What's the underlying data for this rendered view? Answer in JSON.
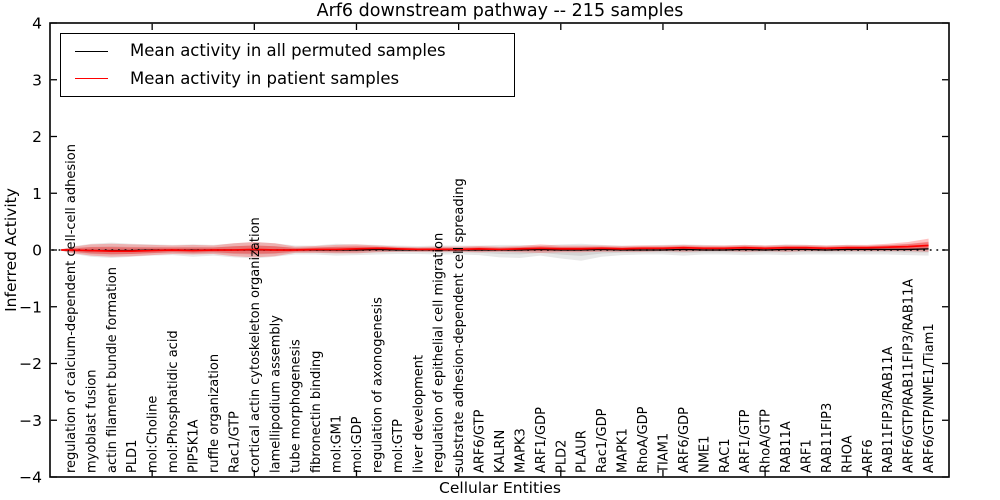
{
  "title": "Arf6 downstream pathway -- 215 samples",
  "legend": {
    "items": [
      {
        "label": "Mean activity in all permuted samples",
        "color": "#000000"
      },
      {
        "label": "Mean activity in patient samples",
        "color": "#ff0000"
      }
    ]
  },
  "axes": {
    "ylabel": "Inferred Activity",
    "xlabel": "Cellular Entities",
    "ylim": [
      -4,
      4
    ],
    "xlim": [
      0,
      44
    ],
    "ytick_values": [
      4,
      3,
      2,
      1,
      0,
      -1,
      -2,
      -3,
      -4
    ],
    "ytick_labels": [
      "4",
      "3",
      "2",
      "1",
      "0",
      "−1",
      "−2",
      "−3",
      "−4"
    ],
    "xtick_values": [
      5,
      10,
      15,
      20,
      25,
      30,
      35,
      40
    ],
    "grid": false,
    "zero_line": "dotted"
  },
  "chart_data": {
    "type": "line",
    "title": "Arf6 downstream pathway -- 215 samples",
    "xlabel": "Cellular Entities",
    "ylabel": "Inferred Activity",
    "ylim": [
      -4,
      4
    ],
    "legend_position": "upper left",
    "categories": [
      "regulation of calcium-dependent cell-cell adhesion",
      "myoblast fusion",
      "actin filament bundle formation",
      "PLD1",
      "mol:Choline",
      "mol:Phosphatidic acid",
      "PIP5K1A",
      "ruffle organization",
      "Rac1/GTP",
      "cortical actin cytoskeleton organization",
      "lamellipodium assembly",
      "tube morphogenesis",
      "fibronectin binding",
      "mol:GM1",
      "mol:GDP",
      "regulation of axonogenesis",
      "mol:GTP",
      "liver development",
      "regulation of epithelial cell migration",
      "substrate adhesion-dependent cell spreading",
      "ARF6/GTP",
      "KALRN",
      "MAPK3",
      "ARF1/GDP",
      "PLD2",
      "PLAUR",
      "Rac1/GDP",
      "MAPK1",
      "RhoA/GDP",
      "TIAM1",
      "ARF6/GDP",
      "NME1",
      "RAC1",
      "ARF1/GTP",
      "RhoA/GTP",
      "RAB11A",
      "ARF1",
      "RAB11FIP3",
      "RHOA",
      "ARF6",
      "RAB11FIP3/RAB11A",
      "ARF6/GTP/RAB11FIP3/RAB11A",
      "ARF6/GTP/NME1/Tiam1"
    ],
    "series": [
      {
        "name": "Mean activity in all permuted samples",
        "color": "#000000",
        "values": [
          0,
          -0.01,
          -0.01,
          -0.01,
          0,
          0,
          0,
          0,
          0,
          0,
          0,
          0,
          0,
          0,
          0,
          0.01,
          0,
          0,
          0,
          0,
          0,
          0,
          0,
          0.01,
          0,
          0,
          0.01,
          0,
          0,
          0,
          0.01,
          0,
          0,
          0.01,
          0,
          0.01,
          0.01,
          0,
          0.01,
          0.01,
          0.01,
          0.01,
          0.02
        ],
        "band_upper": [
          0.06,
          0.11,
          0.13,
          0.11,
          0.1,
          0.09,
          0.1,
          0.09,
          0.12,
          0.14,
          0.12,
          0.08,
          0.08,
          0.11,
          0.1,
          0.09,
          0.08,
          0.07,
          0.08,
          0.08,
          0.08,
          0.09,
          0.09,
          0.08,
          0.1,
          0.11,
          0.09,
          0.08,
          0.08,
          0.09,
          0.1,
          0.09,
          0.08,
          0.09,
          0.08,
          0.1,
          0.09,
          0.08,
          0.09,
          0.08,
          0.09,
          0.11,
          0.13
        ],
        "band_lower": [
          -0.06,
          -0.12,
          -0.14,
          -0.12,
          -0.1,
          -0.09,
          -0.12,
          -0.1,
          -0.13,
          -0.15,
          -0.12,
          -0.08,
          -0.08,
          -0.1,
          -0.09,
          -0.08,
          -0.07,
          -0.07,
          -0.08,
          -0.08,
          -0.09,
          -0.13,
          -0.14,
          -0.1,
          -0.15,
          -0.19,
          -0.12,
          -0.09,
          -0.08,
          -0.08,
          -0.1,
          -0.08,
          -0.08,
          -0.09,
          -0.08,
          -0.09,
          -0.08,
          -0.08,
          -0.08,
          -0.08,
          -0.08,
          -0.09,
          -0.1
        ]
      },
      {
        "name": "Mean activity in patient samples",
        "color": "#ff0000",
        "values": [
          0,
          -0.01,
          -0.02,
          -0.02,
          -0.01,
          0,
          -0.01,
          0,
          0,
          0.01,
          0,
          0,
          0.01,
          0.01,
          0.02,
          0.03,
          0.02,
          0.01,
          0.01,
          0.01,
          0.02,
          0.01,
          0.02,
          0.03,
          0.02,
          0.02,
          0.03,
          0.02,
          0.03,
          0.03,
          0.04,
          0.03,
          0.03,
          0.04,
          0.03,
          0.04,
          0.04,
          0.03,
          0.04,
          0.04,
          0.05,
          0.06,
          0.08
        ],
        "band_upper": [
          0.05,
          0.1,
          0.11,
          0.1,
          0.09,
          0.08,
          0.09,
          0.08,
          0.12,
          0.14,
          0.12,
          0.06,
          0.07,
          0.09,
          0.1,
          0.08,
          0.06,
          0.05,
          0.06,
          0.06,
          0.07,
          0.06,
          0.07,
          0.1,
          0.08,
          0.08,
          0.08,
          0.07,
          0.08,
          0.08,
          0.09,
          0.08,
          0.08,
          0.09,
          0.08,
          0.09,
          0.09,
          0.08,
          0.09,
          0.09,
          0.11,
          0.14,
          0.2
        ],
        "band_lower": [
          -0.05,
          -0.1,
          -0.12,
          -0.11,
          -0.09,
          -0.07,
          -0.08,
          -0.07,
          -0.11,
          -0.13,
          -0.11,
          -0.05,
          -0.05,
          -0.06,
          -0.06,
          -0.04,
          -0.03,
          -0.03,
          -0.03,
          -0.03,
          -0.04,
          -0.03,
          -0.04,
          -0.05,
          -0.04,
          -0.04,
          -0.03,
          -0.03,
          -0.03,
          -0.02,
          -0.03,
          -0.02,
          -0.02,
          -0.03,
          -0.02,
          -0.03,
          -0.02,
          -0.02,
          -0.02,
          -0.02,
          -0.02,
          -0.02,
          -0.03
        ]
      }
    ]
  }
}
